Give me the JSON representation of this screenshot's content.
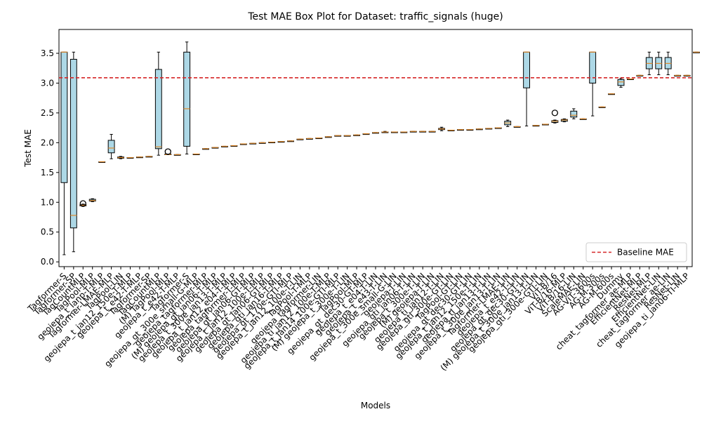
{
  "chart_data": {
    "type": "box",
    "title": "Test MAE Box Plot for Dataset: traffic_signals (huge)",
    "xlabel": "Models",
    "ylabel": "Test MAE",
    "ylim": [
      -0.08,
      3.9
    ],
    "yticks": [
      "0.0",
      "0.5",
      "1.0",
      "1.5",
      "2.0",
      "2.5",
      "3.0",
      "3.5"
    ],
    "grid": false,
    "legend": {
      "placement": "lower-right",
      "entries": [
        {
          "label": "Baseline MAE",
          "color": "#d62728",
          "style": "dashed"
        }
      ]
    },
    "baseline_mae": 3.09,
    "colors": {
      "box_fill": "#add8e6",
      "median": "#e08a2c",
      "baseline": "#d62728"
    },
    "categories": [
      "Tagformer-S",
      "Tagformer-SP",
      "TagCountMLP",
      "TagPool-MLP",
      "geojepa_t_lanp-T-MLP",
      "Tagformer-LMAE-MLP",
      "TagPool-LIN",
      "geojepa_t_jan12_150e-T-MLP",
      "geojepa_t_e42-T-MLP",
      "Tagformer-SP",
      "TagCountMLP",
      "(M) TagPool-MLP",
      "geojepa_t_e42-T-MLP",
      "Tagformer-S",
      "geojepa_gt_300e_small-G-MLP",
      "geojepa_tagformer-MLP",
      "(M) geojepa_gt_jan06-T-MLP",
      "geojepa_t_300e_jan13-T-MLP",
      "geojepa_t_jan12_e04-T-MLP",
      "geojepa_tagformer-T-MLP",
      "geojepa_gt_jan06-GT-MLP",
      "geojepa_t_jan12_100e-T-MLP",
      "geojepa_gt_jan06-GT-MLP",
      "geojepa_gti_jan16-T-MLP",
      "geojepa_gt_170e-GTI-MLP",
      "geojepa_t_jan12_100e-T-LIN",
      "TagPool-T-MLP",
      "geojepa_tagformer-LIN",
      "geojepa_ti_jan12_100e-T-MLP",
      "geojepa_t_jan14_100e-GTI-MLP",
      "(M) geojepa_t_300e-T-LIN",
      "TagPool-MLP",
      "geojepa_gt_dec30-GT-MLP",
      "geojepa_t_e04-T-LIN",
      "geojepa_t_e43-T-LIN",
      "geojepa_t_300e_small-G-LIN",
      "geojepa-T-LIN",
      "geojepa_gti_jan06-T-LIN",
      "geojepa_t_300e-T-LIN",
      "(M) geojepa-T-LIN",
      "geojepa_ti_jan12-T-LIN",
      "geojepa_gti_300e-GT-LIN",
      "TagPool-GT-LIN",
      "geojepa_gt_dec30-GT-LIN",
      "geojepa_t_jan12_150e-T-LIN",
      "geojepa_ti_jan13-T-LIN",
      "geojepa_t_300e_jan13-T-LIN",
      "Tagformer-LMAE-LIN",
      "geojepa_t_e42-T-LIN",
      "geojepa_gt_dec30-GT-LIN",
      "(M) geojepa_t_300e_jan13-T-LIN",
      "geojepa_gti_300e-GTI-LIN",
      "ViT-B/16",
      "ViT-B/16-MLP",
      "ViT-B/16-LIN",
      "ScaleMAE-LIN",
      "AG-ViT-3600s",
      "AG-M-300s",
      "AG-M-600s",
      "Dummy",
      "cheat_tagformer_ae-MLP",
      "EfficientNet-MLP",
      "ResNet-MLP",
      "EfficientNet-LIN",
      "cheat_tagformer_ae-LIN",
      "ResNet-LIN",
      "geojepa_ti_jan06-TI-MLP"
    ],
    "boxes": [
      {
        "whislo": 0.12,
        "q1": 1.33,
        "med": 3.52,
        "q3": 3.52,
        "whishi": 3.52,
        "fliers": []
      },
      {
        "whislo": 0.17,
        "q1": 0.57,
        "med": 0.78,
        "q3": 3.4,
        "whishi": 3.52,
        "fliers": []
      },
      {
        "whislo": 0.93,
        "q1": 0.94,
        "med": 0.95,
        "q3": 0.96,
        "whishi": 0.97,
        "fliers": [
          0.98
        ]
      },
      {
        "whislo": 1.01,
        "q1": 1.02,
        "med": 1.03,
        "q3": 1.05,
        "whishi": 1.06,
        "fliers": []
      },
      {
        "whislo": 1.68,
        "q1": 1.68,
        "med": 1.68,
        "q3": 1.68,
        "whishi": 1.68,
        "fliers": []
      },
      {
        "whislo": 1.73,
        "q1": 1.83,
        "med": 1.91,
        "q3": 2.04,
        "whishi": 2.14,
        "fliers": []
      },
      {
        "whislo": 1.73,
        "q1": 1.74,
        "med": 1.75,
        "q3": 1.76,
        "whishi": 1.77,
        "fliers": []
      },
      {
        "whislo": 1.75,
        "q1": 1.75,
        "med": 1.75,
        "q3": 1.75,
        "whishi": 1.75,
        "fliers": []
      },
      {
        "whislo": 1.76,
        "q1": 1.76,
        "med": 1.76,
        "q3": 1.76,
        "whishi": 1.76,
        "fliers": []
      },
      {
        "whislo": 1.77,
        "q1": 1.77,
        "med": 1.77,
        "q3": 1.77,
        "whishi": 1.77,
        "fliers": []
      },
      {
        "whislo": 1.79,
        "q1": 1.9,
        "med": 1.93,
        "q3": 3.23,
        "whishi": 3.52,
        "fliers": []
      },
      {
        "whislo": 1.8,
        "q1": 1.8,
        "med": 1.8,
        "q3": 1.81,
        "whishi": 1.81,
        "fliers": [
          1.85
        ]
      },
      {
        "whislo": 1.8,
        "q1": 1.8,
        "med": 1.8,
        "q3": 1.8,
        "whishi": 1.8,
        "fliers": []
      },
      {
        "whislo": 1.81,
        "q1": 1.94,
        "med": 2.57,
        "q3": 3.52,
        "whishi": 3.69,
        "fliers": []
      },
      {
        "whislo": 1.81,
        "q1": 1.81,
        "med": 1.81,
        "q3": 1.81,
        "whishi": 1.81,
        "fliers": []
      },
      {
        "whislo": 1.9,
        "q1": 1.9,
        "med": 1.9,
        "q3": 1.9,
        "whishi": 1.9,
        "fliers": []
      },
      {
        "whislo": 1.92,
        "q1": 1.92,
        "med": 1.92,
        "q3": 1.92,
        "whishi": 1.92,
        "fliers": []
      },
      {
        "whislo": 1.94,
        "q1": 1.94,
        "med": 1.94,
        "q3": 1.94,
        "whishi": 1.94,
        "fliers": []
      },
      {
        "whislo": 1.95,
        "q1": 1.95,
        "med": 1.95,
        "q3": 1.95,
        "whishi": 1.95,
        "fliers": []
      },
      {
        "whislo": 1.98,
        "q1": 1.98,
        "med": 1.98,
        "q3": 1.98,
        "whishi": 1.98,
        "fliers": []
      },
      {
        "whislo": 1.99,
        "q1": 1.99,
        "med": 1.99,
        "q3": 1.99,
        "whishi": 1.99,
        "fliers": []
      },
      {
        "whislo": 2.0,
        "q1": 2.0,
        "med": 2.0,
        "q3": 2.0,
        "whishi": 2.0,
        "fliers": []
      },
      {
        "whislo": 2.01,
        "q1": 2.01,
        "med": 2.01,
        "q3": 2.01,
        "whishi": 2.01,
        "fliers": []
      },
      {
        "whislo": 2.02,
        "q1": 2.02,
        "med": 2.02,
        "q3": 2.02,
        "whishi": 2.02,
        "fliers": []
      },
      {
        "whislo": 2.03,
        "q1": 2.03,
        "med": 2.03,
        "q3": 2.03,
        "whishi": 2.03,
        "fliers": []
      },
      {
        "whislo": 2.06,
        "q1": 2.06,
        "med": 2.06,
        "q3": 2.06,
        "whishi": 2.06,
        "fliers": []
      },
      {
        "whislo": 2.07,
        "q1": 2.07,
        "med": 2.07,
        "q3": 2.07,
        "whishi": 2.07,
        "fliers": []
      },
      {
        "whislo": 2.08,
        "q1": 2.08,
        "med": 2.08,
        "q3": 2.08,
        "whishi": 2.08,
        "fliers": []
      },
      {
        "whislo": 2.1,
        "q1": 2.1,
        "med": 2.1,
        "q3": 2.1,
        "whishi": 2.1,
        "fliers": []
      },
      {
        "whislo": 2.11,
        "q1": 2.11,
        "med": 2.12,
        "q3": 2.12,
        "whishi": 2.12,
        "fliers": []
      },
      {
        "whislo": 2.12,
        "q1": 2.12,
        "med": 2.12,
        "q3": 2.12,
        "whishi": 2.12,
        "fliers": []
      },
      {
        "whislo": 2.13,
        "q1": 2.13,
        "med": 2.13,
        "q3": 2.13,
        "whishi": 2.13,
        "fliers": []
      },
      {
        "whislo": 2.15,
        "q1": 2.15,
        "med": 2.15,
        "q3": 2.15,
        "whishi": 2.15,
        "fliers": []
      },
      {
        "whislo": 2.17,
        "q1": 2.17,
        "med": 2.17,
        "q3": 2.17,
        "whishi": 2.17,
        "fliers": []
      },
      {
        "whislo": 2.17,
        "q1": 2.18,
        "med": 2.18,
        "q3": 2.18,
        "whishi": 2.19,
        "fliers": []
      },
      {
        "whislo": 2.18,
        "q1": 2.18,
        "med": 2.18,
        "q3": 2.18,
        "whishi": 2.18,
        "fliers": []
      },
      {
        "whislo": 2.18,
        "q1": 2.18,
        "med": 2.18,
        "q3": 2.18,
        "whishi": 2.18,
        "fliers": []
      },
      {
        "whislo": 2.19,
        "q1": 2.19,
        "med": 2.19,
        "q3": 2.19,
        "whishi": 2.19,
        "fliers": []
      },
      {
        "whislo": 2.19,
        "q1": 2.19,
        "med": 2.19,
        "q3": 2.19,
        "whishi": 2.19,
        "fliers": []
      },
      {
        "whislo": 2.19,
        "q1": 2.19,
        "med": 2.19,
        "q3": 2.19,
        "whishi": 2.19,
        "fliers": []
      },
      {
        "whislo": 2.2,
        "q1": 2.22,
        "med": 2.23,
        "q3": 2.24,
        "whishi": 2.26,
        "fliers": []
      },
      {
        "whislo": 2.21,
        "q1": 2.21,
        "med": 2.21,
        "q3": 2.21,
        "whishi": 2.21,
        "fliers": []
      },
      {
        "whislo": 2.22,
        "q1": 2.22,
        "med": 2.22,
        "q3": 2.22,
        "whishi": 2.22,
        "fliers": []
      },
      {
        "whislo": 2.22,
        "q1": 2.22,
        "med": 2.22,
        "q3": 2.22,
        "whishi": 2.22,
        "fliers": []
      },
      {
        "whislo": 2.23,
        "q1": 2.23,
        "med": 2.23,
        "q3": 2.23,
        "whishi": 2.23,
        "fliers": []
      },
      {
        "whislo": 2.24,
        "q1": 2.24,
        "med": 2.24,
        "q3": 2.24,
        "whishi": 2.24,
        "fliers": []
      },
      {
        "whislo": 2.25,
        "q1": 2.25,
        "med": 2.25,
        "q3": 2.25,
        "whishi": 2.25,
        "fliers": []
      },
      {
        "whislo": 2.27,
        "q1": 2.3,
        "med": 2.33,
        "q3": 2.36,
        "whishi": 2.38,
        "fliers": []
      },
      {
        "whislo": 2.27,
        "q1": 2.27,
        "med": 2.27,
        "q3": 2.27,
        "whishi": 2.27,
        "fliers": []
      },
      {
        "whislo": 2.28,
        "q1": 2.92,
        "med": 3.52,
        "q3": 3.52,
        "whishi": 3.52,
        "fliers": []
      },
      {
        "whislo": 2.29,
        "q1": 2.29,
        "med": 2.29,
        "q3": 2.29,
        "whishi": 2.29,
        "fliers": []
      },
      {
        "whislo": 2.31,
        "q1": 2.31,
        "med": 2.31,
        "q3": 2.31,
        "whishi": 2.31,
        "fliers": []
      },
      {
        "whislo": 2.33,
        "q1": 2.34,
        "med": 2.36,
        "q3": 2.37,
        "whishi": 2.38,
        "fliers": [
          2.5
        ]
      },
      {
        "whislo": 2.35,
        "q1": 2.36,
        "med": 2.38,
        "q3": 2.39,
        "whishi": 2.4,
        "fliers": []
      },
      {
        "whislo": 2.4,
        "q1": 2.43,
        "med": 2.46,
        "q3": 2.53,
        "whishi": 2.57,
        "fliers": []
      },
      {
        "whislo": 2.4,
        "q1": 2.4,
        "med": 2.4,
        "q3": 2.4,
        "whishi": 2.4,
        "fliers": []
      },
      {
        "whislo": 2.45,
        "q1": 3.0,
        "med": 3.52,
        "q3": 3.52,
        "whishi": 3.52,
        "fliers": []
      },
      {
        "whislo": 2.6,
        "q1": 2.6,
        "med": 2.6,
        "q3": 2.6,
        "whishi": 2.6,
        "fliers": []
      },
      {
        "whislo": 2.82,
        "q1": 2.82,
        "med": 2.82,
        "q3": 2.82,
        "whishi": 2.82,
        "fliers": []
      },
      {
        "whislo": 2.93,
        "q1": 2.96,
        "med": 3.02,
        "q3": 3.06,
        "whishi": 3.08,
        "fliers": []
      },
      {
        "whislo": 3.07,
        "q1": 3.07,
        "med": 3.07,
        "q3": 3.07,
        "whishi": 3.07,
        "fliers": []
      },
      {
        "whislo": 3.13,
        "q1": 3.13,
        "med": 3.13,
        "q3": 3.13,
        "whishi": 3.13,
        "fliers": []
      },
      {
        "whislo": 3.14,
        "q1": 3.24,
        "med": 3.33,
        "q3": 3.43,
        "whishi": 3.52,
        "fliers": []
      },
      {
        "whislo": 3.14,
        "q1": 3.24,
        "med": 3.33,
        "q3": 3.43,
        "whishi": 3.52,
        "fliers": []
      },
      {
        "whislo": 3.14,
        "q1": 3.24,
        "med": 3.33,
        "q3": 3.43,
        "whishi": 3.52,
        "fliers": []
      },
      {
        "whislo": 3.13,
        "q1": 3.13,
        "med": 3.13,
        "q3": 3.13,
        "whishi": 3.13,
        "fliers": []
      },
      {
        "whislo": 3.13,
        "q1": 3.13,
        "med": 3.13,
        "q3": 3.13,
        "whishi": 3.13,
        "fliers": []
      },
      {
        "whislo": 3.52,
        "q1": 3.52,
        "med": 3.52,
        "q3": 3.52,
        "whishi": 3.52,
        "fliers": []
      }
    ]
  }
}
